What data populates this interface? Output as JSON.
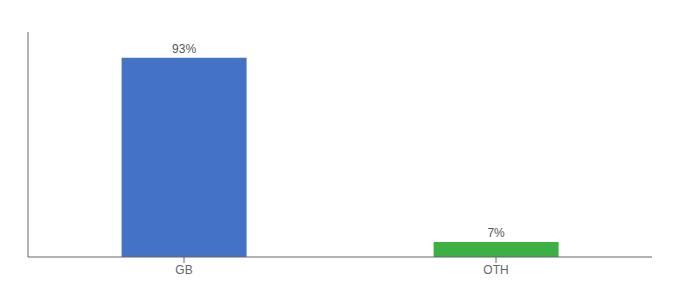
{
  "chart_data": {
    "type": "bar",
    "categories": [
      "GB",
      "OTH"
    ],
    "values": [
      93,
      7
    ],
    "value_labels": [
      "93%",
      "7%"
    ],
    "colors": [
      "#4472c4",
      "#3cb043"
    ],
    "ylim": [
      0,
      105
    ],
    "yticks": [],
    "tick_labels": "x",
    "grid": false,
    "data_labels": true
  }
}
